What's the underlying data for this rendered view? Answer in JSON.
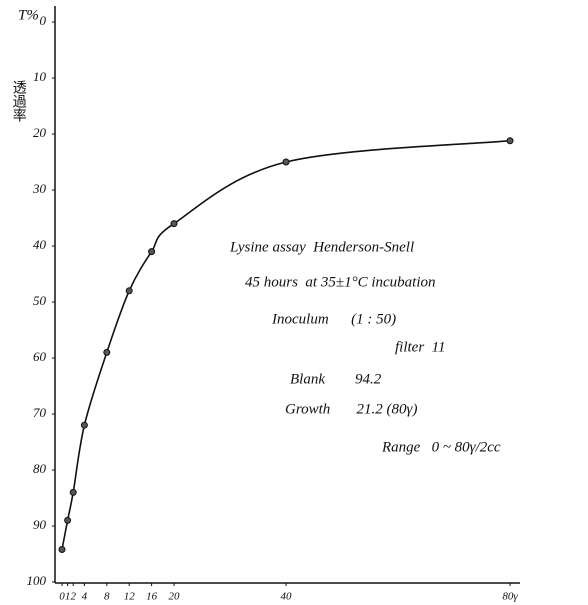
{
  "chart_data": {
    "type": "line",
    "y_label": "T%",
    "y_label_2": "透過率",
    "x": [
      0,
      1,
      2,
      4,
      8,
      12,
      16,
      20,
      40,
      80
    ],
    "series": [
      {
        "color": "#111111",
        "values": [
          94.2,
          89,
          84,
          72,
          59,
          48,
          41,
          36,
          25,
          21.2
        ]
      }
    ],
    "xlim": [
      0,
      80
    ],
    "xticks": [
      0,
      1,
      2,
      4,
      8,
      12,
      16,
      20,
      40,
      {
        "value": 80,
        "label": "80γ"
      }
    ],
    "ylim": [
      0,
      100
    ],
    "yticks": [
      0,
      10,
      20,
      30,
      40,
      50,
      60,
      70,
      80,
      90,
      100
    ],
    "y_inverted": true,
    "annotations": [
      "Lysine assay  Henderson-Snell",
      "45 hours  at 35±1°C incubation",
      "Inoculum      (1 : 50)",
      "filter  11",
      "Blank        94.2",
      "Growth       21.2 (80γ)",
      "Range   0 ~ 80γ/2cc"
    ]
  }
}
